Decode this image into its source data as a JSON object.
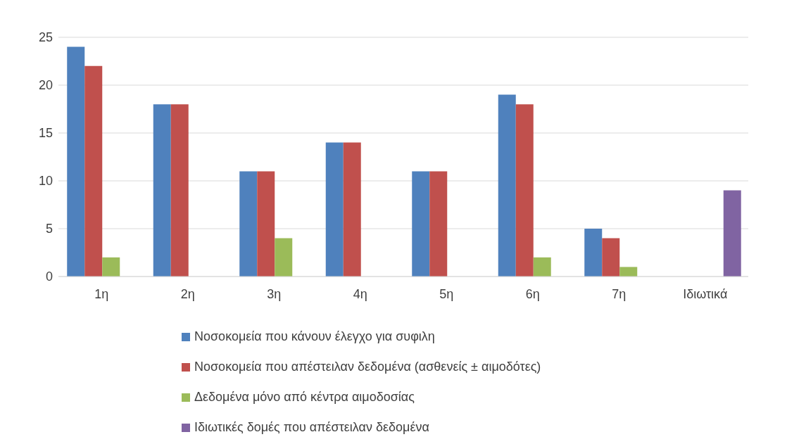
{
  "chart_data": {
    "type": "bar",
    "categories": [
      "1η",
      "2η",
      "3η",
      "4η",
      "5η",
      "6η",
      "7η",
      "Ιδιωτικά"
    ],
    "series": [
      {
        "name": "Νοσοκομεία που κάνουν έλεγχο για συφιλη",
        "color": "#4f81bd",
        "values": [
          24,
          18,
          11,
          14,
          11,
          19,
          5,
          null
        ]
      },
      {
        "name": "Νοσοκομεία που απέστειλαν δεδομένα (ασθενείς ± αιμοδότες)",
        "color": "#c0504d",
        "values": [
          22,
          18,
          11,
          14,
          11,
          18,
          4,
          null
        ]
      },
      {
        "name": "Δεδομένα μόνο από κέντρα αιμοδοσίας",
        "color": "#9bbb59",
        "values": [
          2,
          0,
          4,
          0,
          0,
          2,
          1,
          null
        ]
      },
      {
        "name": "Ιδιωτικές δομές που απέστειλαν δεδομένα",
        "color": "#8064a2",
        "values": [
          null,
          null,
          null,
          null,
          null,
          null,
          null,
          9
        ]
      }
    ],
    "ylim": [
      0,
      25
    ],
    "yticks": [
      0,
      5,
      10,
      15,
      20,
      25
    ],
    "grid": "y",
    "legend": "bottom"
  }
}
